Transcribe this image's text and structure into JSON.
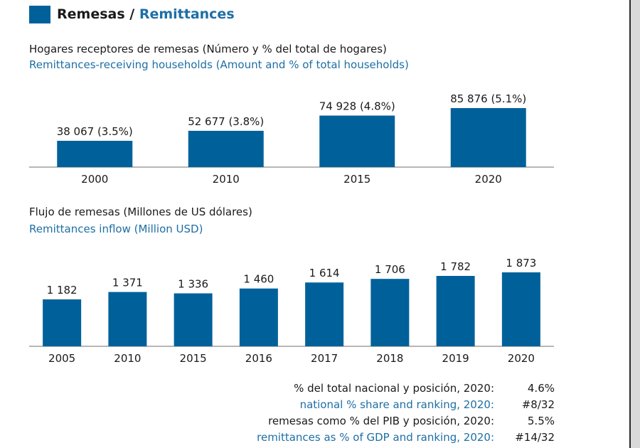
{
  "header": {
    "title_es": "Remesas /",
    "title_en": "Remittances"
  },
  "chart_data": [
    {
      "type": "bar",
      "title": "Hogares receptores de remesas (Número y % del total de hogares)",
      "subtitle": "Remittances-receiving households (Amount and % of total households)",
      "categories": [
        "2000",
        "2010",
        "2015",
        "2020"
      ],
      "values": [
        38067,
        52677,
        74928,
        85876
      ],
      "data_labels": [
        "38 067 (3.5%)",
        "52 677 (3.8%)",
        "74 928 (4.8%)",
        "85 876 (5.1%)"
      ],
      "percent_of_households": [
        3.5,
        3.8,
        4.8,
        5.1
      ],
      "color": "#00619a",
      "grid": false
    },
    {
      "type": "bar",
      "title": "Flujo de remesas (Millones de US dólares)",
      "subtitle": "Remittances inflow (Million USD)",
      "categories": [
        "2005",
        "2010",
        "2015",
        "2016",
        "2017",
        "2018",
        "2019",
        "2020"
      ],
      "values": [
        1182,
        1371,
        1336,
        1460,
        1614,
        1706,
        1782,
        1873
      ],
      "data_labels": [
        "1 182",
        "1 371",
        "1 336",
        "1 460",
        "1 614",
        "1 706",
        "1 782",
        "1 873"
      ],
      "color": "#00619a",
      "grid": false
    }
  ],
  "stats": [
    {
      "label": "% del total nacional y posición, 2020:",
      "value": "4.6%",
      "lang": "es"
    },
    {
      "label": "national % share and ranking, 2020:",
      "value": "#8/32",
      "lang": "en"
    },
    {
      "label": "remesas como % del PIB y posición, 2020:",
      "value": "5.5%",
      "lang": "es"
    },
    {
      "label": "remittances as % of GDP and ranking, 2020:",
      "value": "#14/32",
      "lang": "en"
    }
  ]
}
